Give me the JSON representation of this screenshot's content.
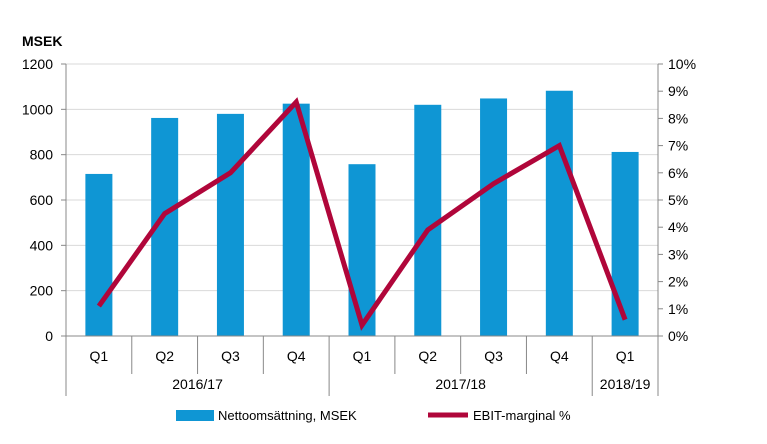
{
  "chart_data": {
    "type": "bar+line",
    "unit_label": "MSEK",
    "categories": [
      "Q1",
      "Q2",
      "Q3",
      "Q4",
      "Q1",
      "Q2",
      "Q3",
      "Q4",
      "Q1"
    ],
    "groups": [
      {
        "label": "2016/17",
        "count": 4
      },
      {
        "label": "2017/18",
        "count": 4
      },
      {
        "label": "2018/19",
        "count": 1
      }
    ],
    "series": [
      {
        "name": "Nettoomsättning, MSEK",
        "type": "bar",
        "axis": "left",
        "color": "#0f96d4",
        "values": [
          715,
          962,
          980,
          1025,
          758,
          1020,
          1048,
          1082,
          812
        ]
      },
      {
        "name": "EBIT-marginal %",
        "type": "line",
        "axis": "right",
        "color": "#b0063a",
        "values": [
          1.1,
          4.5,
          6.0,
          8.6,
          0.4,
          3.9,
          5.6,
          7.0,
          0.6
        ]
      }
    ],
    "left_axis": {
      "min": 0,
      "max": 1200,
      "step": 200,
      "ticks": [
        "0",
        "200",
        "400",
        "600",
        "800",
        "1000",
        "1200"
      ]
    },
    "right_axis": {
      "min": 0,
      "max": 10,
      "step": 1,
      "ticks": [
        "0%",
        "1%",
        "2%",
        "3%",
        "4%",
        "5%",
        "6%",
        "7%",
        "8%",
        "9%",
        "10%"
      ]
    },
    "grid": true,
    "legend_position": "bottom"
  }
}
